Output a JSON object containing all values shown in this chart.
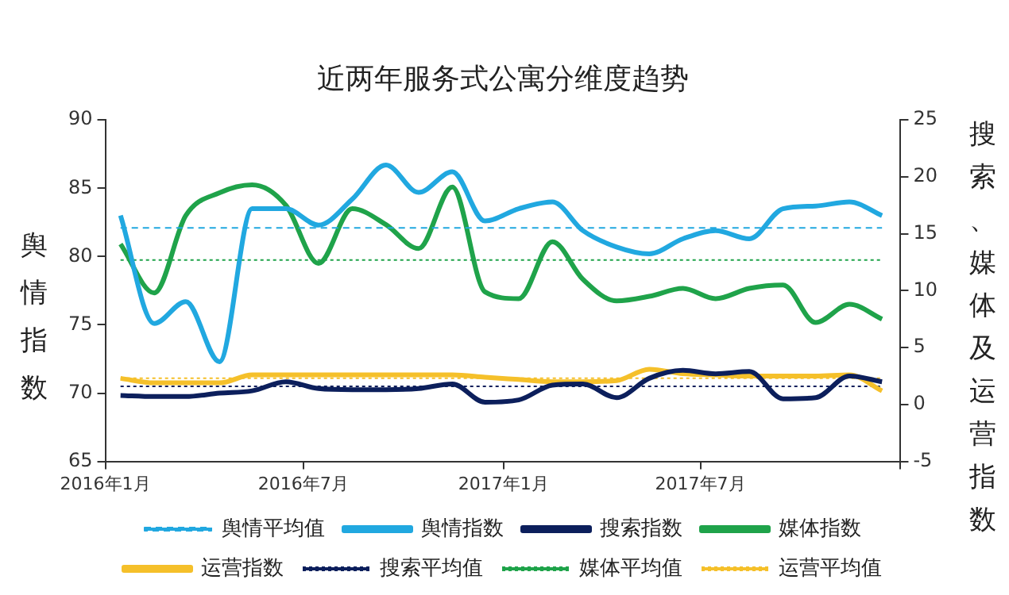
{
  "chart_data": {
    "type": "line",
    "title": "近两年服务式公寓分维度趋势",
    "ylabel": "舆情指数",
    "y2label": "搜索、媒体及运营指数",
    "x": [
      "2016-01-15",
      "2016-02-15",
      "2016-03-15",
      "2016-04-15",
      "2016-05-15",
      "2016-06-15",
      "2016-07-15",
      "2016-08-15",
      "2016-09-15",
      "2016-10-15",
      "2016-11-15",
      "2016-12-15",
      "2017-01-15",
      "2017-02-15",
      "2017-03-15",
      "2017-04-15",
      "2017-05-15",
      "2017-06-15",
      "2017-07-15",
      "2017-08-15",
      "2017-09-15",
      "2017-10-15",
      "2017-11-15",
      "2017-12-15"
    ],
    "xlim": [
      "2016-01",
      "2018-01"
    ],
    "xticks": [
      {
        "value": "2016-01",
        "label": "2016年1月"
      },
      {
        "value": "2016-07",
        "label": "2016年7月"
      },
      {
        "value": "2017-01",
        "label": "2017年1月"
      },
      {
        "value": "2017-07",
        "label": "2017年7月"
      },
      {
        "value": "2018-01",
        "label": null
      }
    ],
    "ylim": [
      65,
      90
    ],
    "yticks": [
      65,
      70,
      75,
      80,
      85,
      90
    ],
    "y2lim": [
      -5,
      25
    ],
    "y2ticks": [
      -5,
      0,
      5,
      10,
      15,
      20,
      25
    ],
    "grid": false,
    "legend": "bottom",
    "marker": "none",
    "series": [
      {
        "name": "舆情平均值",
        "color": "#21a8e0",
        "line_style": "dashed",
        "values": [
          82.1,
          82.1,
          82.1,
          82.1,
          82.1,
          82.1,
          82.1,
          82.1,
          82.1,
          82.1,
          82.1,
          82.1,
          82.1,
          82.1,
          82.1,
          82.1,
          82.1,
          82.1,
          82.1,
          82.1,
          82.1,
          82.1,
          82.1,
          82.1
        ]
      },
      {
        "name": "舆情指数",
        "color": "#21a8e0",
        "line_style": "solid",
        "values": [
          83.0,
          75.1,
          76.7,
          72.3,
          83.5,
          83.5,
          82.3,
          84.2,
          86.7,
          84.7,
          86.2,
          82.6,
          83.5,
          84.0,
          81.9,
          80.7,
          80.2,
          81.3,
          81.9,
          81.3,
          83.5,
          83.7,
          84.0,
          83.0
        ]
      },
      {
        "name": "搜索指数",
        "color": "#0c1f5c",
        "line_style": "solid",
        "axis": "y2",
        "values": [
          0.8,
          0.7,
          0.7,
          1.0,
          1.2,
          2.0,
          1.4,
          1.3,
          1.3,
          1.4,
          1.8,
          0.2,
          0.4,
          1.7,
          1.8,
          0.6,
          2.3,
          3.0,
          2.7,
          2.9,
          0.5,
          0.6,
          2.5,
          2.0
        ]
      },
      {
        "name": "媒体指数",
        "color": "#1fa34a",
        "line_style": "solid",
        "axis": "y2",
        "values": [
          14.1,
          9.8,
          16.6,
          18.6,
          19.3,
          17.5,
          12.4,
          17.2,
          15.8,
          13.7,
          19.1,
          9.9,
          9.3,
          14.3,
          11.0,
          9.1,
          9.5,
          10.2,
          9.3,
          10.2,
          10.5,
          7.2,
          8.8,
          7.5
        ]
      },
      {
        "name": "运营指数",
        "color": "#f5c02a",
        "line_style": "solid",
        "axis": "y2",
        "values": [
          2.3,
          1.9,
          1.9,
          1.9,
          2.6,
          2.6,
          2.6,
          2.6,
          2.6,
          2.6,
          2.6,
          2.4,
          2.2,
          2.0,
          2.0,
          2.1,
          3.1,
          2.7,
          2.6,
          2.5,
          2.5,
          2.5,
          2.6,
          1.2
        ]
      },
      {
        "name": "搜索平均值",
        "color": "#0c1f5c",
        "line_style": "dotted",
        "axis": "y2",
        "values": [
          1.6,
          1.6,
          1.6,
          1.6,
          1.6,
          1.6,
          1.6,
          1.6,
          1.6,
          1.6,
          1.6,
          1.6,
          1.6,
          1.6,
          1.6,
          1.6,
          1.6,
          1.6,
          1.6,
          1.6,
          1.6,
          1.6,
          1.6,
          1.6
        ]
      },
      {
        "name": "媒体平均值",
        "color": "#1fa34a",
        "line_style": "dotted",
        "axis": "y2",
        "values": [
          12.7,
          12.7,
          12.7,
          12.7,
          12.7,
          12.7,
          12.7,
          12.7,
          12.7,
          12.7,
          12.7,
          12.7,
          12.7,
          12.7,
          12.7,
          12.7,
          12.7,
          12.7,
          12.7,
          12.7,
          12.7,
          12.7,
          12.7,
          12.7
        ]
      },
      {
        "name": "运营平均值",
        "color": "#f5c02a",
        "line_style": "dotted",
        "axis": "y2",
        "values": [
          2.3,
          2.3,
          2.3,
          2.3,
          2.3,
          2.3,
          2.3,
          2.3,
          2.3,
          2.3,
          2.3,
          2.3,
          2.3,
          2.3,
          2.3,
          2.3,
          2.3,
          2.3,
          2.3,
          2.3,
          2.3,
          2.3,
          2.3,
          2.3
        ]
      }
    ]
  }
}
